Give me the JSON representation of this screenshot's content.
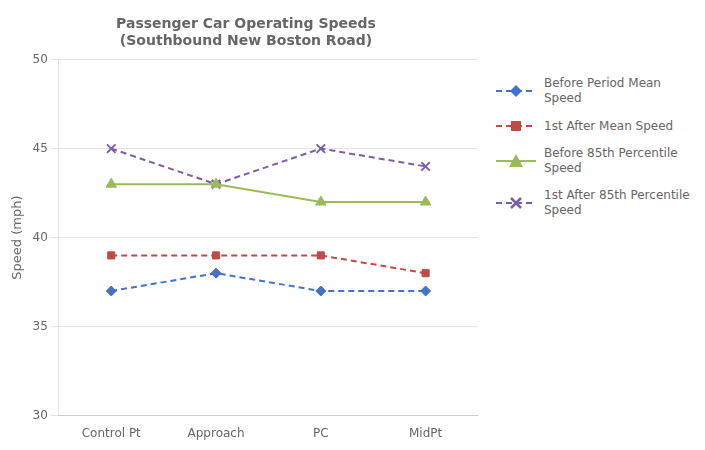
{
  "chart_data": {
    "type": "line",
    "title": "Passenger Car Operating Speeds\n(Southbound New Boston Road)",
    "ylabel": "Speed (mph)",
    "categories": [
      "Control Pt",
      "Approach",
      "PC",
      "MidPt"
    ],
    "series": [
      {
        "name": "Before Period Mean\nSpeed",
        "color": "#4472C4",
        "marker": "diamond",
        "line_style": "dashed",
        "values": [
          37.0,
          38.0,
          37.0,
          37.0
        ]
      },
      {
        "name": "1st After Mean Speed",
        "color": "#BE4B48",
        "marker": "square",
        "line_style": "dashed",
        "values": [
          39.0,
          39.0,
          39.0,
          38.0
        ]
      },
      {
        "name": "Before 85th Percentile\nSpeed",
        "color": "#9BBB59",
        "marker": "triangle",
        "line_style": "solid",
        "values": [
          43.0,
          43.0,
          42.0,
          42.0
        ]
      },
      {
        "name": "1st After 85th Percentile\nSpeed",
        "color": "#7B5EA7",
        "marker": "x",
        "line_style": "dashed",
        "values": [
          45.0,
          43.0,
          45.0,
          44.0
        ]
      }
    ],
    "ylim": [
      30,
      50
    ],
    "yticks": [
      30,
      35,
      40,
      45,
      50
    ],
    "grid": "y",
    "legend": "right"
  }
}
